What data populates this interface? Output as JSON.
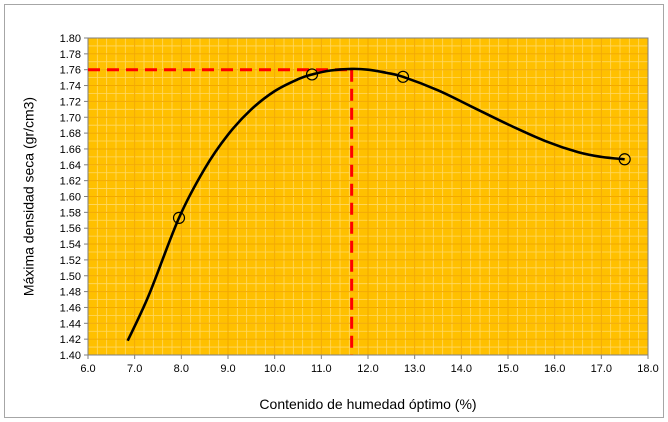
{
  "chart_data": {
    "type": "scatter",
    "xlabel": "Contenido de humedad óptimo (%)",
    "ylabel": "Máxima densidad seca (gr/cm3)",
    "xlim": [
      6.0,
      18.0
    ],
    "ylim": [
      1.4,
      1.8
    ],
    "x_ticks": [
      "6.0",
      "7.0",
      "8.0",
      "9.0",
      "10.0",
      "11.0",
      "12.0",
      "13.0",
      "14.0",
      "15.0",
      "16.0",
      "17.0",
      "18.0"
    ],
    "y_ticks": [
      "1.40",
      "1.42",
      "1.44",
      "1.46",
      "1.48",
      "1.50",
      "1.52",
      "1.54",
      "1.56",
      "1.58",
      "1.60",
      "1.62",
      "1.64",
      "1.66",
      "1.68",
      "1.70",
      "1.72",
      "1.74",
      "1.76",
      "1.78",
      "1.80"
    ],
    "grid": true,
    "grid_minor_x_step": 0.2,
    "grid_minor_y_step": 0.01,
    "points": [
      {
        "x": 7.95,
        "y": 1.573
      },
      {
        "x": 10.8,
        "y": 1.754
      },
      {
        "x": 12.75,
        "y": 1.751
      },
      {
        "x": 17.5,
        "y": 1.647
      }
    ],
    "curve": [
      {
        "x": 6.85,
        "y": 1.418
      },
      {
        "x": 7.3,
        "y": 1.475
      },
      {
        "x": 7.95,
        "y": 1.573
      },
      {
        "x": 8.5,
        "y": 1.635
      },
      {
        "x": 9.0,
        "y": 1.678
      },
      {
        "x": 9.5,
        "y": 1.71
      },
      {
        "x": 10.0,
        "y": 1.733
      },
      {
        "x": 10.5,
        "y": 1.748
      },
      {
        "x": 10.8,
        "y": 1.754
      },
      {
        "x": 11.2,
        "y": 1.759
      },
      {
        "x": 11.65,
        "y": 1.761
      },
      {
        "x": 12.0,
        "y": 1.76
      },
      {
        "x": 12.4,
        "y": 1.756
      },
      {
        "x": 12.75,
        "y": 1.751
      },
      {
        "x": 13.5,
        "y": 1.734
      },
      {
        "x": 14.2,
        "y": 1.714
      },
      {
        "x": 15.0,
        "y": 1.691
      },
      {
        "x": 15.8,
        "y": 1.67
      },
      {
        "x": 16.5,
        "y": 1.656
      },
      {
        "x": 17.0,
        "y": 1.65
      },
      {
        "x": 17.5,
        "y": 1.647
      }
    ],
    "reference_lines": {
      "optimum_x": 11.65,
      "max_density_y": 1.76,
      "color": "#ff0000",
      "style": "dashed"
    },
    "colors": {
      "plot_background": "#ffc000",
      "grid_minor": "#ffd966",
      "grid_major": "#f2a800",
      "curve": "#000000",
      "marker_edge": "#000000"
    }
  }
}
